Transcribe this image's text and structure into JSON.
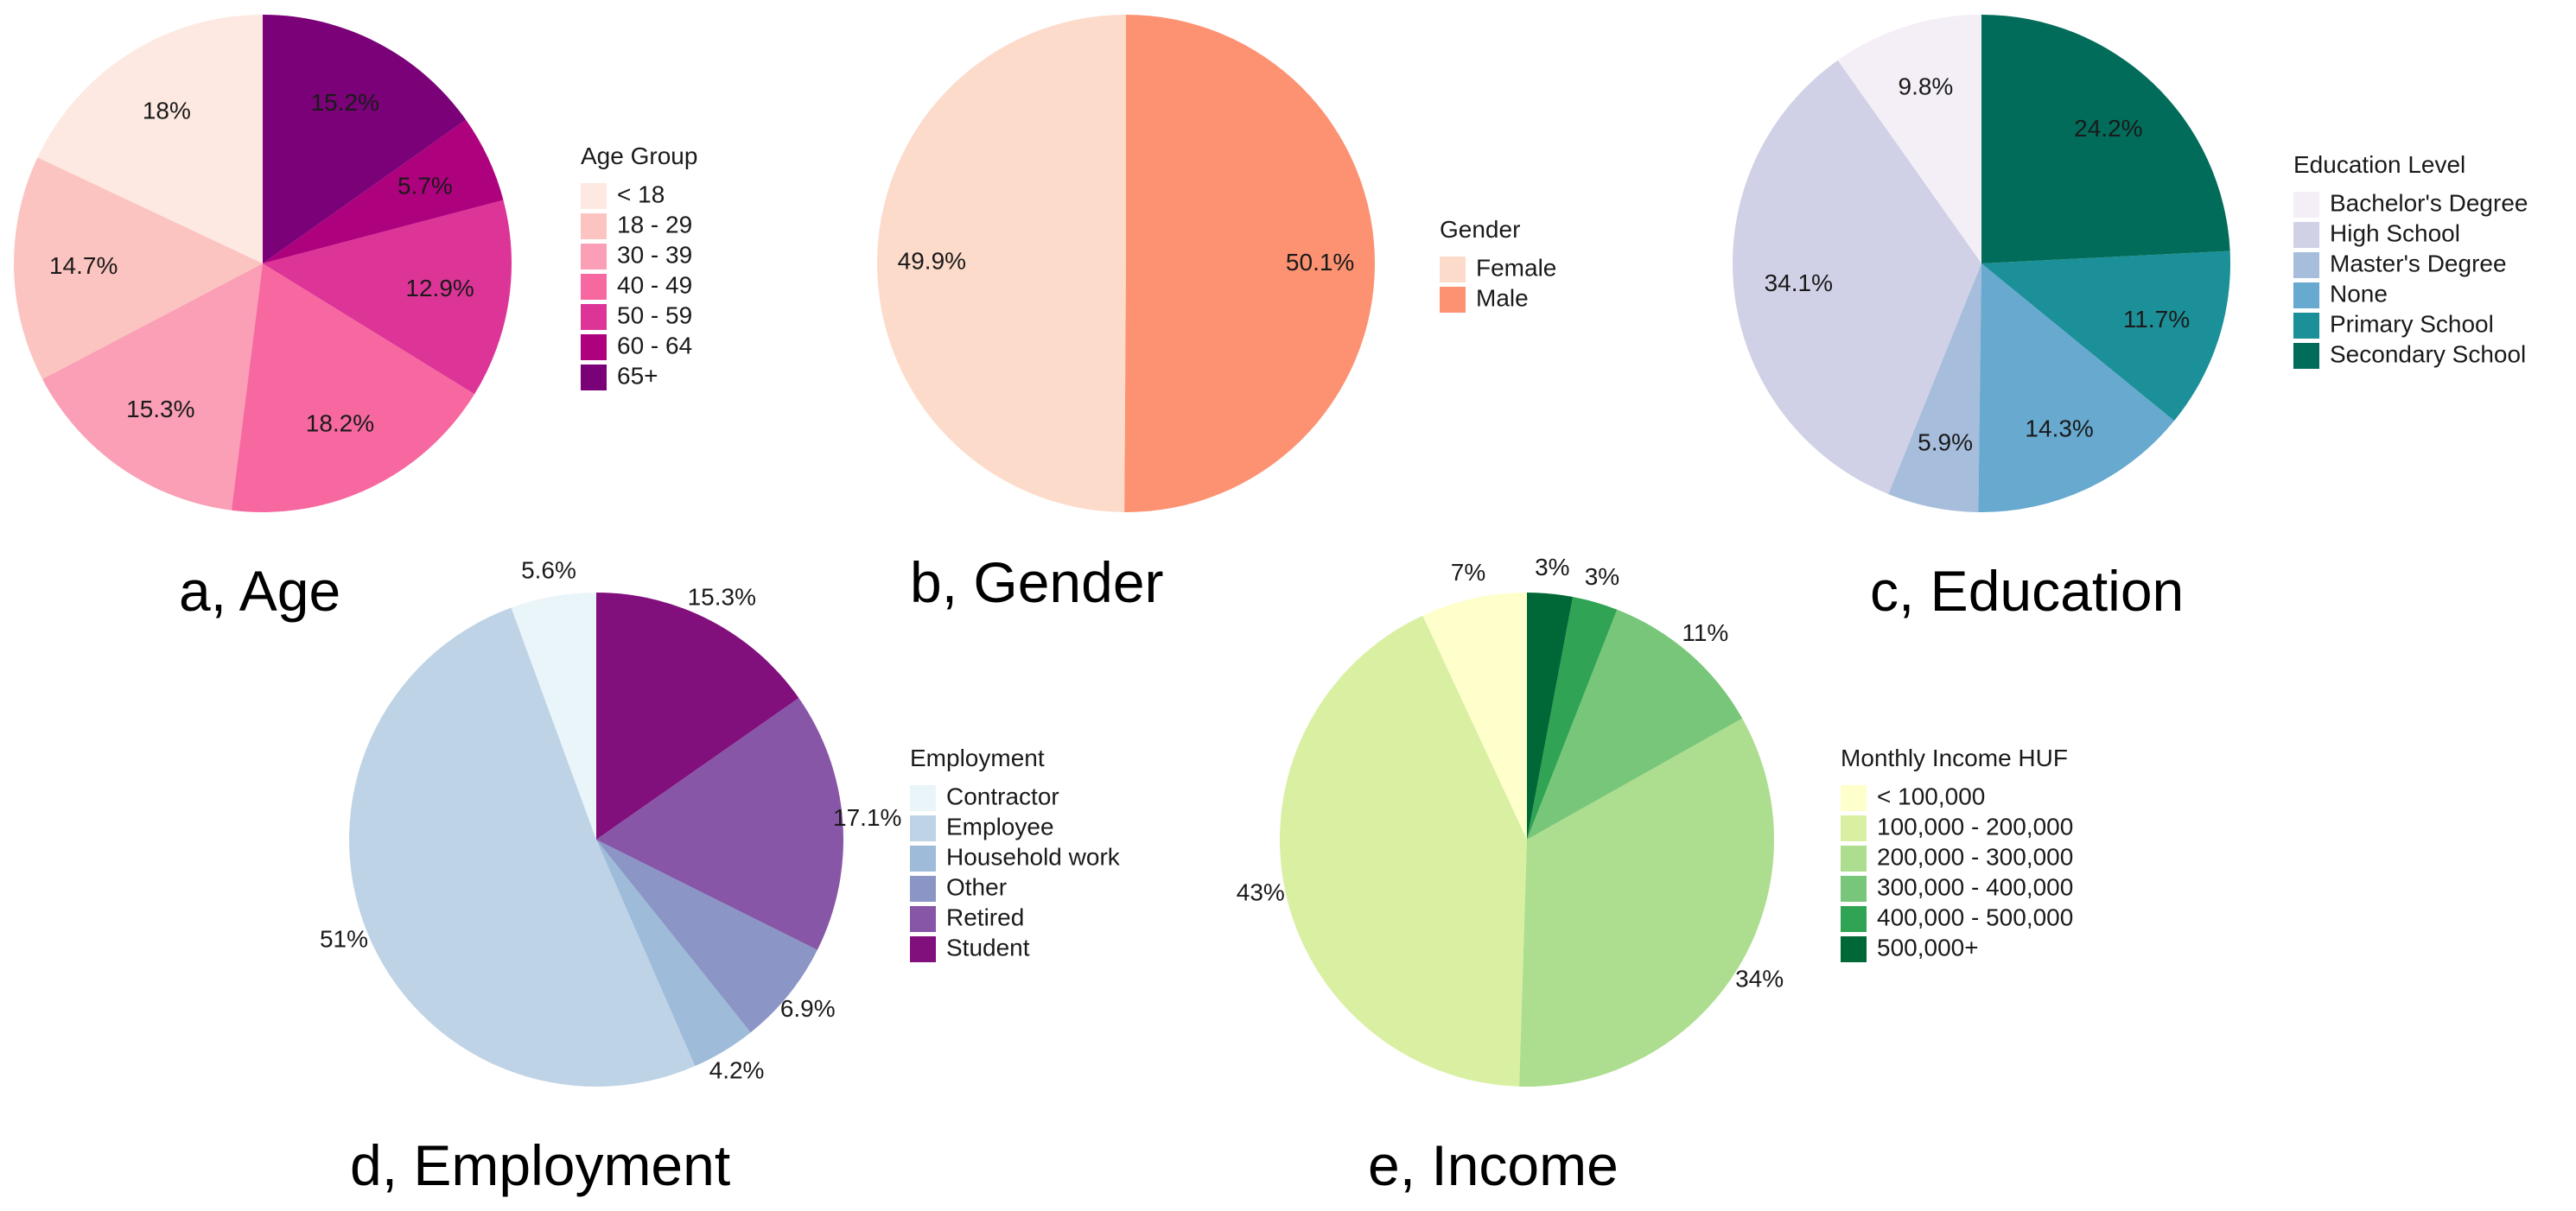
{
  "chart_data": [
    {
      "type": "pie",
      "title": "a, Age",
      "legend_title": "Age Group",
      "legend_position": "right",
      "slices": [
        {
          "label": "< 18",
          "value": 18.0,
          "display": "18%",
          "color": "#fde9e1"
        },
        {
          "label": "18 - 29",
          "value": 14.7,
          "display": "14.7%",
          "color": "#fcc4c0"
        },
        {
          "label": "30 - 39",
          "value": 15.3,
          "display": "15.3%",
          "color": "#fa9fb5"
        },
        {
          "label": "40 - 49",
          "value": 18.2,
          "display": "18.2%",
          "color": "#f768a1"
        },
        {
          "label": "50 - 59",
          "value": 12.9,
          "display": "12.9%",
          "color": "#dd3497"
        },
        {
          "label": "60 - 64",
          "value": 5.7,
          "display": "5.7%",
          "color": "#ae017e"
        },
        {
          "label": "65+",
          "value": 15.2,
          "display": "15.2%",
          "color": "#7a0177"
        }
      ]
    },
    {
      "type": "pie",
      "title": "b, Gender",
      "legend_title": "Gender",
      "legend_position": "right",
      "slices": [
        {
          "label": "Female",
          "value": 49.9,
          "display": "49.9%",
          "color": "#fddbcb"
        },
        {
          "label": "Male",
          "value": 50.1,
          "display": "50.1%",
          "color": "#fc9272"
        }
      ]
    },
    {
      "type": "pie",
      "title": "c, Education",
      "legend_title": "Education Level",
      "legend_position": "right",
      "slices": [
        {
          "label": "Bachelor's Degree",
          "value": 9.8,
          "display": "9.8%",
          "color": "#f4eef6"
        },
        {
          "label": "High School",
          "value": 34.1,
          "display": "34.1%",
          "color": "#d0d1e6"
        },
        {
          "label": "Master's Degree",
          "value": 5.9,
          "display": "5.9%",
          "color": "#a6bddb"
        },
        {
          "label": "None",
          "value": 14.3,
          "display": "14.3%",
          "color": "#67a9cf"
        },
        {
          "label": "Primary School",
          "value": 11.7,
          "display": "11.7%",
          "color": "#1c9099"
        },
        {
          "label": "Secondary School",
          "value": 24.2,
          "display": "24.2%",
          "color": "#016c59"
        }
      ]
    },
    {
      "type": "pie",
      "title": "d, Employment",
      "legend_title": "Employment",
      "legend_position": "right",
      "slices": [
        {
          "label": "Contractor",
          "value": 5.6,
          "display": "5.6%",
          "color": "#eaf5f9"
        },
        {
          "label": "Employee",
          "value": 51.0,
          "display": "51%",
          "color": "#bfd3e6"
        },
        {
          "label": "Household work",
          "value": 4.2,
          "display": "4.2%",
          "color": "#9ebcda"
        },
        {
          "label": "Other",
          "value": 6.9,
          "display": "6.9%",
          "color": "#8c96c6"
        },
        {
          "label": "Retired",
          "value": 17.1,
          "display": "17.1%",
          "color": "#8856a7"
        },
        {
          "label": "Student",
          "value": 15.3,
          "display": "15.3%",
          "color": "#810f7c"
        }
      ]
    },
    {
      "type": "pie",
      "title": "e, Income",
      "legend_title": "Monthly Income HUF",
      "legend_position": "right",
      "slices": [
        {
          "label": "< 100,000",
          "value": 7,
          "display": "7%",
          "color": "#ffffcc"
        },
        {
          "label": "100,000 - 200,000",
          "value": 43,
          "display": "43%",
          "color": "#d9f0a3"
        },
        {
          "label": "200,000 - 300,000",
          "value": 34,
          "display": "34%",
          "color": "#addd8e"
        },
        {
          "label": "300,000 - 400,000",
          "value": 11,
          "display": "11%",
          "color": "#78c679"
        },
        {
          "label": "400,000 - 500,000",
          "value": 3,
          "display": "3%",
          "color": "#31a354"
        },
        {
          "label": "500,000+",
          "value": 3,
          "display": "3%",
          "color": "#006837"
        }
      ]
    }
  ]
}
